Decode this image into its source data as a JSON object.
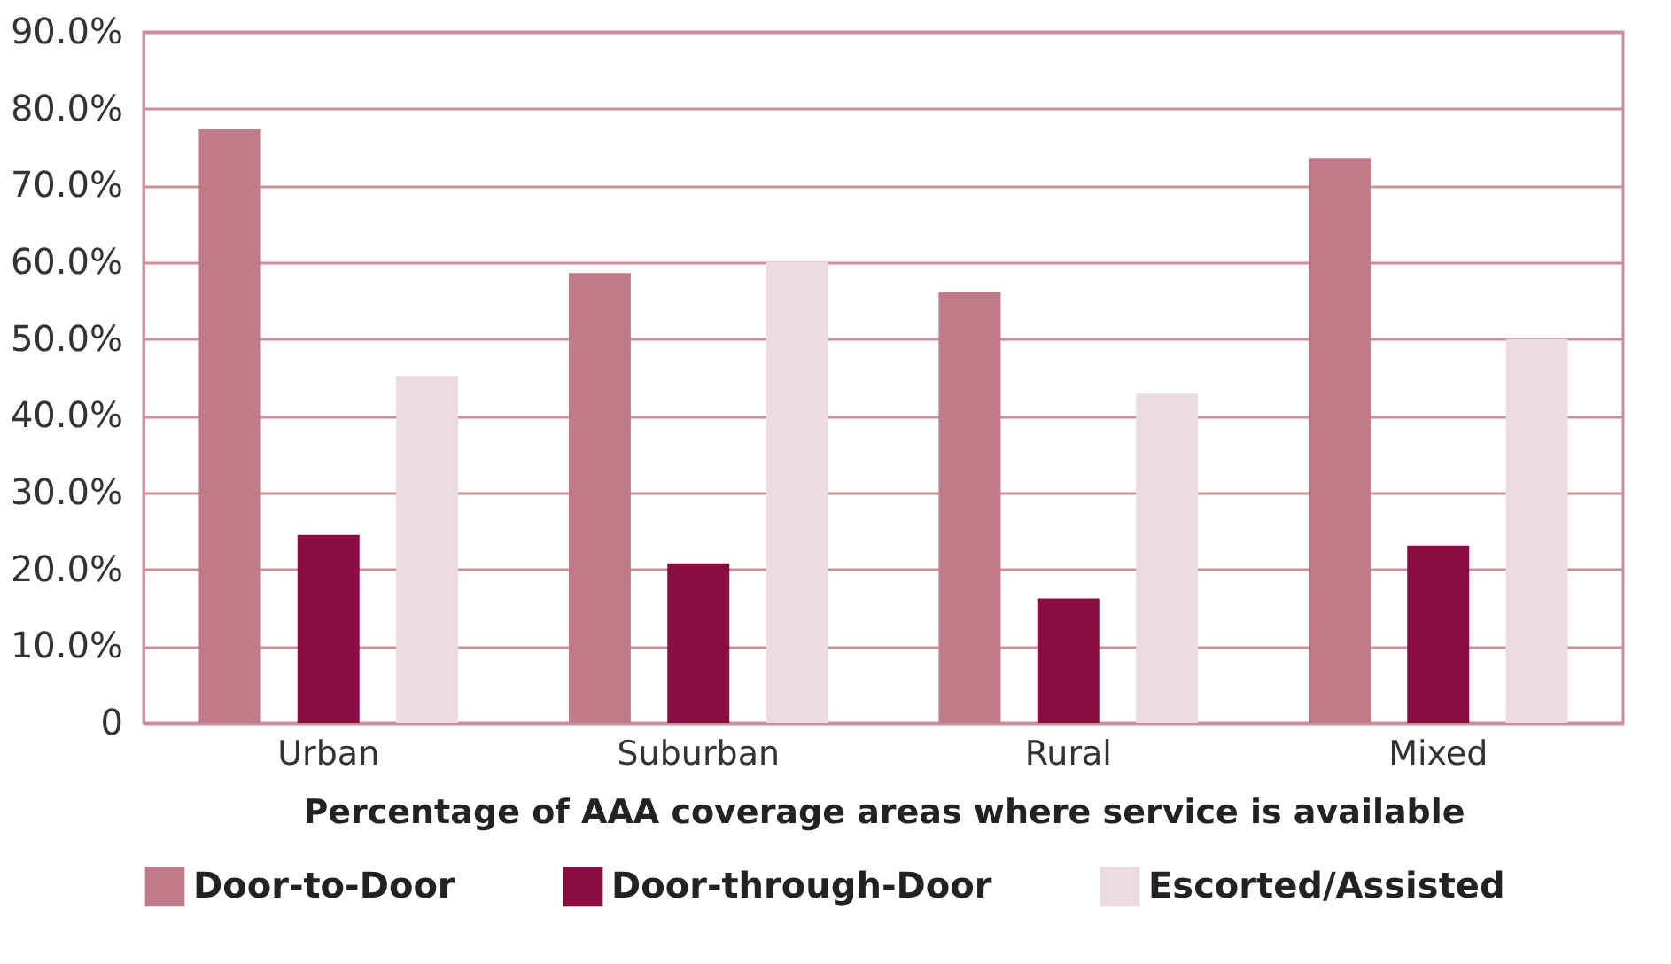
{
  "chart_data": {
    "type": "bar",
    "xlabel": "Percentage of AAA coverage areas where service is available",
    "categories": [
      "Urban",
      "Suburban",
      "Rural",
      "Mixed"
    ],
    "series": [
      {
        "name": "Door-to-Door",
        "color": "#bf7b89",
        "values": [
          77.3,
          58.6,
          56.1,
          73.6
        ]
      },
      {
        "name": "Door-through-Door",
        "color": "#8b0c42",
        "values": [
          24.5,
          20.8,
          16.2,
          23.1
        ]
      },
      {
        "name": "Escorted/Assisted",
        "color": "#eddcdf",
        "values": [
          45.2,
          60.0,
          42.9,
          50.0
        ]
      }
    ],
    "ylim": [
      0,
      90
    ],
    "yticks": [
      {
        "value": 0,
        "label": "0"
      },
      {
        "value": 10,
        "label": "10.0%"
      },
      {
        "value": 20,
        "label": "20.0%"
      },
      {
        "value": 30,
        "label": "30.0%"
      },
      {
        "value": 40,
        "label": "40.0%"
      },
      {
        "value": 50,
        "label": "50.0%"
      },
      {
        "value": 60,
        "label": "60.0%"
      },
      {
        "value": 70,
        "label": "70.0%"
      },
      {
        "value": 80,
        "label": "80.0%"
      },
      {
        "value": 90,
        "label": "90.0%"
      }
    ],
    "grid": "y",
    "legend": "bottom"
  }
}
